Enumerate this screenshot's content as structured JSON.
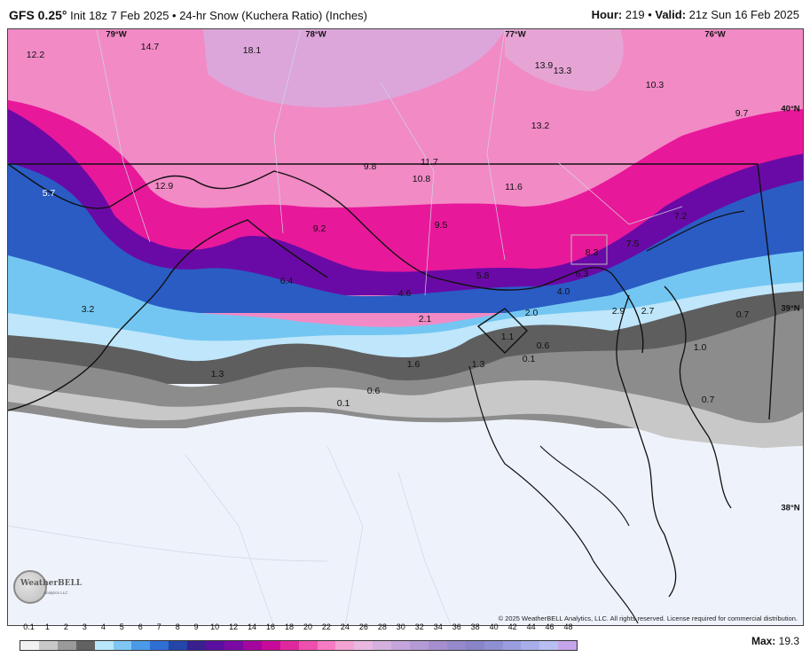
{
  "header": {
    "model": "GFS 0.25°",
    "init": " Init 18z 7 Feb 2025 • 24-hr Snow (Kuchera Ratio) (Inches)",
    "hour_label": "Hour:",
    "hour_value": "219",
    "valid_label": "Valid:",
    "valid_value": "21z Sun 16 Feb 2025"
  },
  "grid_labels": [
    "79°W",
    "78°W",
    "77°W",
    "76°W",
    "40°N",
    "39°N",
    "38°N"
  ],
  "values": [
    "12.2",
    "14.7",
    "18.1",
    "13.9",
    "13.3",
    "10.3",
    "9.7",
    "13.2",
    "9.8",
    "11.7",
    "10.8",
    "11.6",
    "12.9",
    "5.7",
    "9.2",
    "9.5",
    "7.2",
    "7.5",
    "8.3",
    "6.3",
    "6.4",
    "5.8",
    "4.6",
    "4.0",
    "3.2",
    "2.1",
    "2.0",
    "2.9",
    "2.7",
    "0.7",
    "1.1",
    "0.6",
    "0.1",
    "1.0",
    "1.6",
    "1.3",
    "1.3",
    "0.6",
    "0.1",
    "0.7"
  ],
  "copyright": "© 2025 WeatherBELL Analytics, LLC. All rights reserved. License required for commercial distribution.",
  "logo": {
    "name": "WeatherBELL",
    "sub": "Analytics LLC"
  },
  "legend": {
    "ticks": [
      "0.1",
      "1",
      "2",
      "3",
      "4",
      "5",
      "6",
      "7",
      "8",
      "9",
      "10",
      "12",
      "14",
      "16",
      "18",
      "20",
      "22",
      "24",
      "26",
      "28",
      "30",
      "32",
      "34",
      "36",
      "38",
      "40",
      "42",
      "44",
      "46",
      "48"
    ],
    "colors": [
      "#f2f2f2",
      "#c8c8c8",
      "#9a9a9a",
      "#626262",
      "#b9e6fb",
      "#7fc6f5",
      "#4a9ae8",
      "#2f6fd4",
      "#2347a8",
      "#3a1f8f",
      "#5b0fa0",
      "#7a0aa4",
      "#a5059f",
      "#c80a9a",
      "#e0289e",
      "#ef4fae",
      "#f57bc2",
      "#f2a3d2",
      "#e8b8e0",
      "#d4b0de",
      "#c4a6dc",
      "#b49bd6",
      "#a58fd0",
      "#968acc",
      "#8a84c8",
      "#8f8fd4",
      "#9a9ee0",
      "#a8aeea",
      "#b6bef2",
      "#c6a4ec"
    ],
    "max_label": "Max:",
    "max_value": "19.3"
  }
}
